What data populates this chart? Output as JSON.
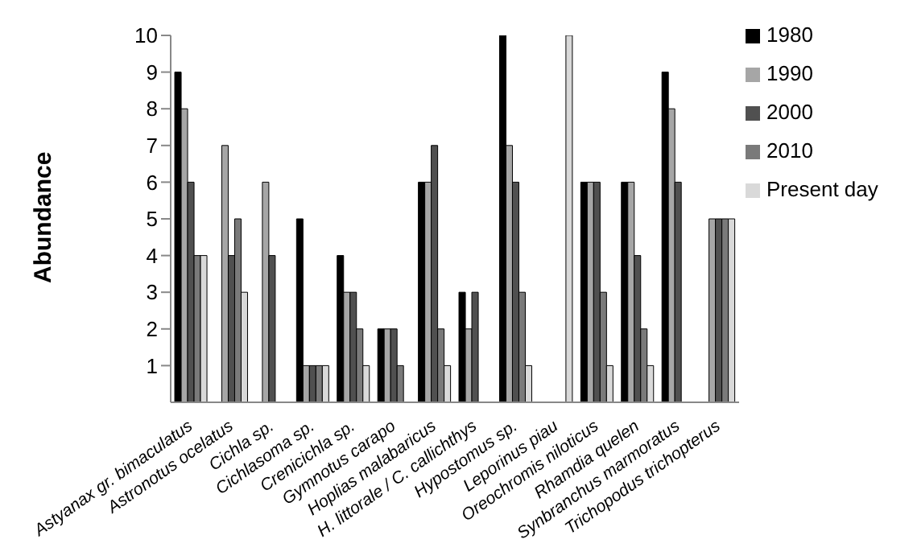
{
  "chart_data": {
    "type": "bar",
    "ylabel": "Abundance",
    "categories": [
      "Astyanax gr. bimaculatus",
      "Astronotus ocelatus",
      "Cichla sp.",
      "Cichlasoma sp.",
      "Crenicichla sp.",
      "Gymnotus carapo",
      "Hoplias malabaricus",
      "H. littorale / C. callichthys",
      "Hypostomus sp.",
      "Leporinus piau",
      "Oreochromis niloticus",
      "Rhamdia quelen",
      "Synbranchus marmoratus",
      "Trichopodus trichopterus"
    ],
    "series": [
      {
        "name": "1980",
        "color": "#000000",
        "values": [
          9,
          null,
          null,
          5,
          4,
          2,
          6,
          3,
          10,
          null,
          6,
          6,
          9,
          null
        ]
      },
      {
        "name": "1990",
        "color": "#a6a6a6",
        "values": [
          8,
          7,
          6,
          1,
          3,
          2,
          6,
          2,
          7,
          null,
          6,
          6,
          8,
          5
        ]
      },
      {
        "name": "2000",
        "color": "#505050",
        "values": [
          6,
          4,
          4,
          1,
          3,
          2,
          7,
          3,
          6,
          null,
          6,
          4,
          6,
          5
        ]
      },
      {
        "name": "2010",
        "color": "#7a7a7a",
        "values": [
          4,
          5,
          null,
          1,
          2,
          1,
          2,
          null,
          3,
          null,
          3,
          2,
          null,
          5
        ]
      },
      {
        "name": "Present day",
        "color": "#d9d9d9",
        "values": [
          4,
          3,
          null,
          1,
          1,
          null,
          1,
          null,
          1,
          10,
          1,
          1,
          null,
          5
        ]
      }
    ],
    "ylim": [
      0,
      10
    ],
    "yticks": [
      1,
      2,
      3,
      4,
      5,
      6,
      7,
      8,
      9,
      10
    ],
    "grid": false,
    "legend": "top right"
  }
}
